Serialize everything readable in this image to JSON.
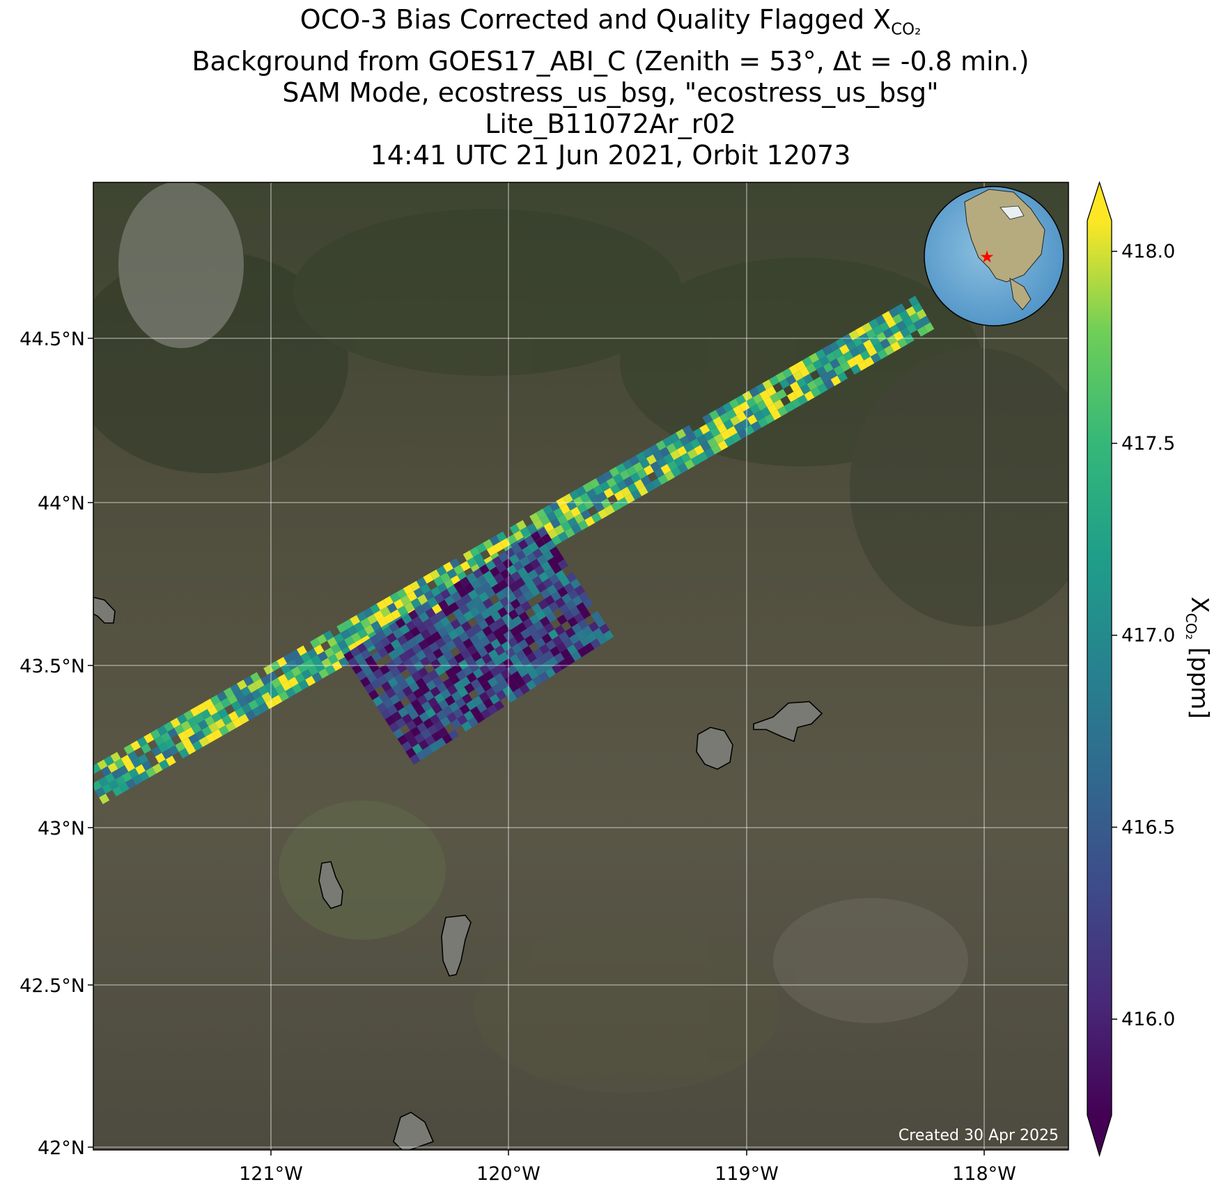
{
  "title": {
    "line1_prefix": "OCO-3 Bias Corrected and Quality Flagged X",
    "line1_sub": "CO₂",
    "line2": "Background from GOES17_ABI_C (Zenith = 53°, Δt = -0.8 min.)",
    "line3": "SAM Mode, ecostress_us_bsg, \"ecostress_us_bsg\"",
    "line4": "Lite_B11072Ar_r02",
    "line5": "14:41 UTC 21 Jun 2021, Orbit 12073"
  },
  "footer": {
    "created": "Created 30 Apr 2025"
  },
  "colors": {
    "viridis_low": "#440154",
    "viridis_mid": "#21918c",
    "viridis_high": "#fde725",
    "inset_star": "#ff0000"
  },
  "chart_data": {
    "type": "heatmap",
    "xlabel": "",
    "ylabel": "",
    "xlim": [
      -121.75,
      -117.65
    ],
    "ylim": [
      41.98,
      44.97
    ],
    "x_ticks": [
      -121,
      -120,
      -119,
      -118
    ],
    "x_tick_labels": [
      "121°W",
      "120°W",
      "119°W",
      "118°W"
    ],
    "y_ticks": [
      42.0,
      42.5,
      43.0,
      43.5,
      44.0,
      44.5
    ],
    "y_tick_labels": [
      "42°N",
      "42.5°N",
      "43°N",
      "43.5°N",
      "44°N",
      "44.5°N"
    ],
    "grid": true,
    "colorbar": {
      "label_prefix": "X",
      "label_sub": "CO₂",
      "label_suffix": " [ppm]",
      "range": [
        415.75,
        418.08
      ],
      "ticks": [
        416.0,
        416.5,
        417.0,
        417.5,
        418.0
      ],
      "tick_labels": [
        "416.0",
        "416.5",
        "417.0",
        "417.5",
        "418.0"
      ],
      "extend": "both",
      "colormap": "viridis"
    },
    "swaths": [
      {
        "name": "",
        "start": [
          -121.75,
          43.1
        ],
        "end": [
          -118.25,
          44.57
        ],
        "width_deg": 0.13,
        "mean_ppm": 417.5,
        "spread_ppm": 0.55
      },
      {
        "name": "",
        "start": [
          -120.55,
          43.34
        ],
        "end": [
          -119.7,
          43.74
        ],
        "width_deg": 0.42,
        "mean_ppm": 416.3,
        "spread_ppm": 0.5
      }
    ],
    "inset_globe": {
      "marker_lon": -119.9,
      "marker_lat": 43.2
    }
  }
}
